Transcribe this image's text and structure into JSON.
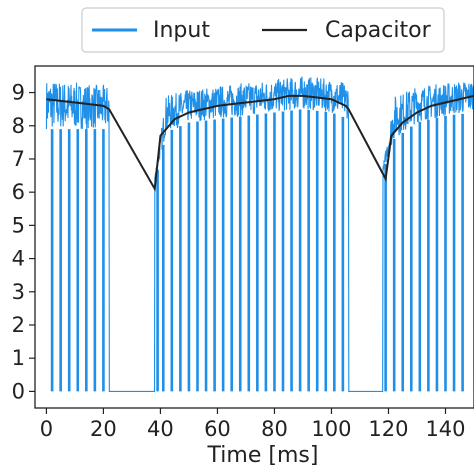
{
  "chart_data": {
    "type": "line",
    "xlabel": "Time [ms]",
    "ylabel": "",
    "xlim": [
      -4,
      150
    ],
    "ylim": [
      -0.5,
      9.8
    ],
    "x_ticks": [
      0,
      20,
      40,
      60,
      80,
      100,
      120,
      140
    ],
    "y_ticks": [
      0,
      1,
      2,
      3,
      4,
      5,
      6,
      7,
      8,
      9
    ],
    "grid": false,
    "legend_placement": "top",
    "series": [
      {
        "name": "Input",
        "color": "#1f8fe8",
        "style": "dense-oscillating",
        "active_windows": [
          [
            0,
            22
          ],
          [
            38,
            106
          ],
          [
            118,
            150
          ]
        ],
        "spike_to_zero_times": [
          2,
          5,
          8,
          11,
          14,
          17,
          20,
          39,
          41,
          44,
          47,
          50,
          53,
          56,
          59,
          62,
          65,
          68,
          71,
          74,
          77,
          80,
          83,
          86,
          89,
          92,
          95,
          98,
          101,
          104,
          119,
          122,
          125,
          128,
          131,
          134,
          137,
          140,
          143,
          146
        ],
        "band": {
          "x": [
            0,
            22,
            38,
            42,
            50,
            60,
            70,
            80,
            90,
            100,
            106,
            118,
            122,
            130,
            140,
            150
          ],
          "low": [
            7.9,
            7.9,
            6.3,
            7.8,
            8.1,
            8.2,
            8.3,
            8.4,
            8.5,
            8.4,
            8.2,
            6.6,
            7.6,
            8.1,
            8.3,
            8.4
          ],
          "high": [
            9.4,
            9.2,
            6.5,
            8.9,
            9.1,
            9.2,
            9.3,
            9.4,
            9.5,
            9.4,
            9.3,
            6.7,
            8.9,
            9.2,
            9.3,
            9.4
          ]
        }
      },
      {
        "name": "Capacitor",
        "color": "#222222",
        "x": [
          0,
          5,
          10,
          15,
          20,
          22,
          38,
          40,
          45,
          50,
          55,
          60,
          65,
          70,
          75,
          80,
          85,
          90,
          95,
          100,
          105,
          106,
          119,
          121,
          125,
          130,
          135,
          140,
          145,
          150
        ],
        "y": [
          8.8,
          8.75,
          8.7,
          8.65,
          8.6,
          8.5,
          6.1,
          7.7,
          8.2,
          8.4,
          8.5,
          8.6,
          8.65,
          8.7,
          8.75,
          8.8,
          8.9,
          8.9,
          8.85,
          8.8,
          8.6,
          8.5,
          6.4,
          7.7,
          8.1,
          8.4,
          8.6,
          8.7,
          8.8,
          8.9
        ]
      }
    ]
  }
}
